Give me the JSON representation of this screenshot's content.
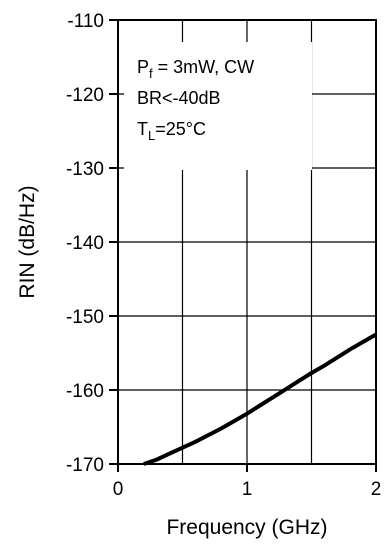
{
  "chart_data": {
    "type": "line",
    "xlabel": "Frequency (GHz)",
    "ylabel": "RIN (dB/Hz)",
    "xlim": [
      0,
      2
    ],
    "ylim": [
      -170,
      -110
    ],
    "x_ticks": [
      0,
      1,
      2
    ],
    "y_ticks": [
      -110,
      -120,
      -130,
      -140,
      -150,
      -160,
      -170
    ],
    "x_tick_labels": [
      "0",
      "1",
      "2"
    ],
    "y_tick_labels": [
      "-110",
      "-120",
      "-130",
      "-140",
      "-150",
      "-160",
      "-170"
    ],
    "grid": true,
    "annotations": {
      "line1_main": "P",
      "line1_sub": "f",
      "line1_rest": " = 3mW, CW",
      "line2": "BR<-40dB",
      "line3_main": "T",
      "line3_sub": "L",
      "line3_rest": "=25°C"
    },
    "series": [
      {
        "x": [
          0.2,
          0.3,
          0.4,
          0.5,
          0.6,
          0.7,
          0.8,
          0.9,
          1.0,
          1.1,
          1.2,
          1.3,
          1.4,
          1.5,
          1.6,
          1.7,
          1.8,
          1.9,
          2.0
        ],
        "y": [
          -170.0,
          -169.4,
          -168.6,
          -167.8,
          -167.0,
          -166.1,
          -165.2,
          -164.2,
          -163.2,
          -162.1,
          -161.0,
          -159.9,
          -158.8,
          -157.7,
          -156.7,
          -155.6,
          -154.5,
          -153.5,
          -152.5
        ],
        "color": "#000000"
      }
    ]
  }
}
